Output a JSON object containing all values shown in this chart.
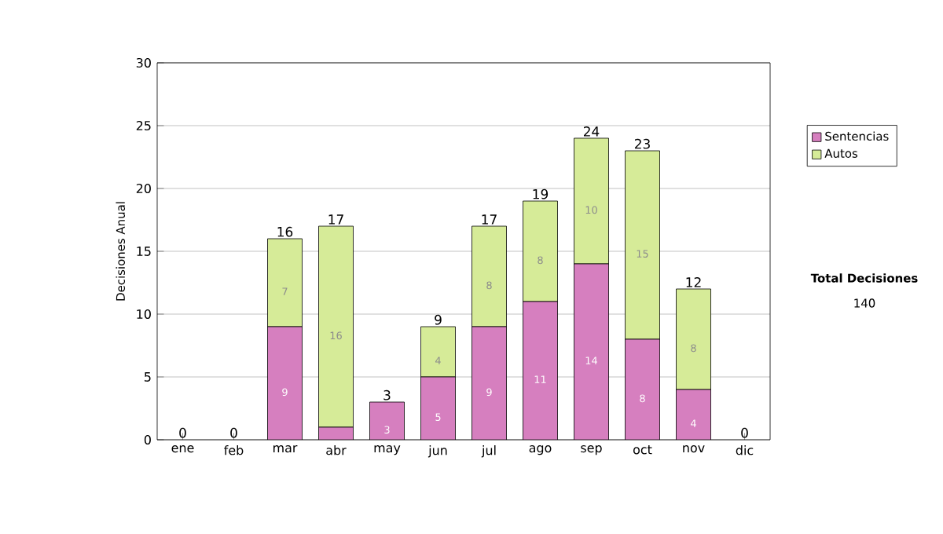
{
  "chart_data": {
    "type": "bar",
    "stacked": true,
    "ylabel": "Decisiones Anual",
    "categories": [
      "ene",
      "feb",
      "mar",
      "abr",
      "may",
      "jun",
      "jul",
      "ago",
      "sep",
      "oct",
      "nov",
      "dic"
    ],
    "series": [
      {
        "name": "Sentencias",
        "color": "#d67fbf",
        "values": [
          0,
          0,
          9,
          1,
          3,
          5,
          9,
          11,
          14,
          8,
          4,
          0
        ],
        "value_labels": [
          null,
          null,
          "9",
          null,
          "3",
          "5",
          "9",
          "11",
          "14",
          "8",
          "4",
          null
        ]
      },
      {
        "name": "Autos",
        "color": "#d6eb98",
        "values": [
          0,
          0,
          7,
          16,
          0,
          4,
          8,
          8,
          10,
          15,
          8,
          0
        ],
        "value_labels": [
          null,
          null,
          "7",
          "16",
          null,
          "4",
          "8",
          "8",
          "10",
          "15",
          "8",
          null
        ]
      }
    ],
    "totals": [
      "0",
      "0",
      "16",
      "17",
      "3",
      "9",
      "17",
      "19",
      "24",
      "23",
      "12",
      "0"
    ],
    "ylim": [
      0,
      30
    ],
    "yticks": [
      0,
      5,
      10,
      15,
      20,
      25,
      30
    ],
    "grid": "y",
    "legend": "right",
    "annotations": [
      "Total Decisiones",
      "140"
    ]
  }
}
